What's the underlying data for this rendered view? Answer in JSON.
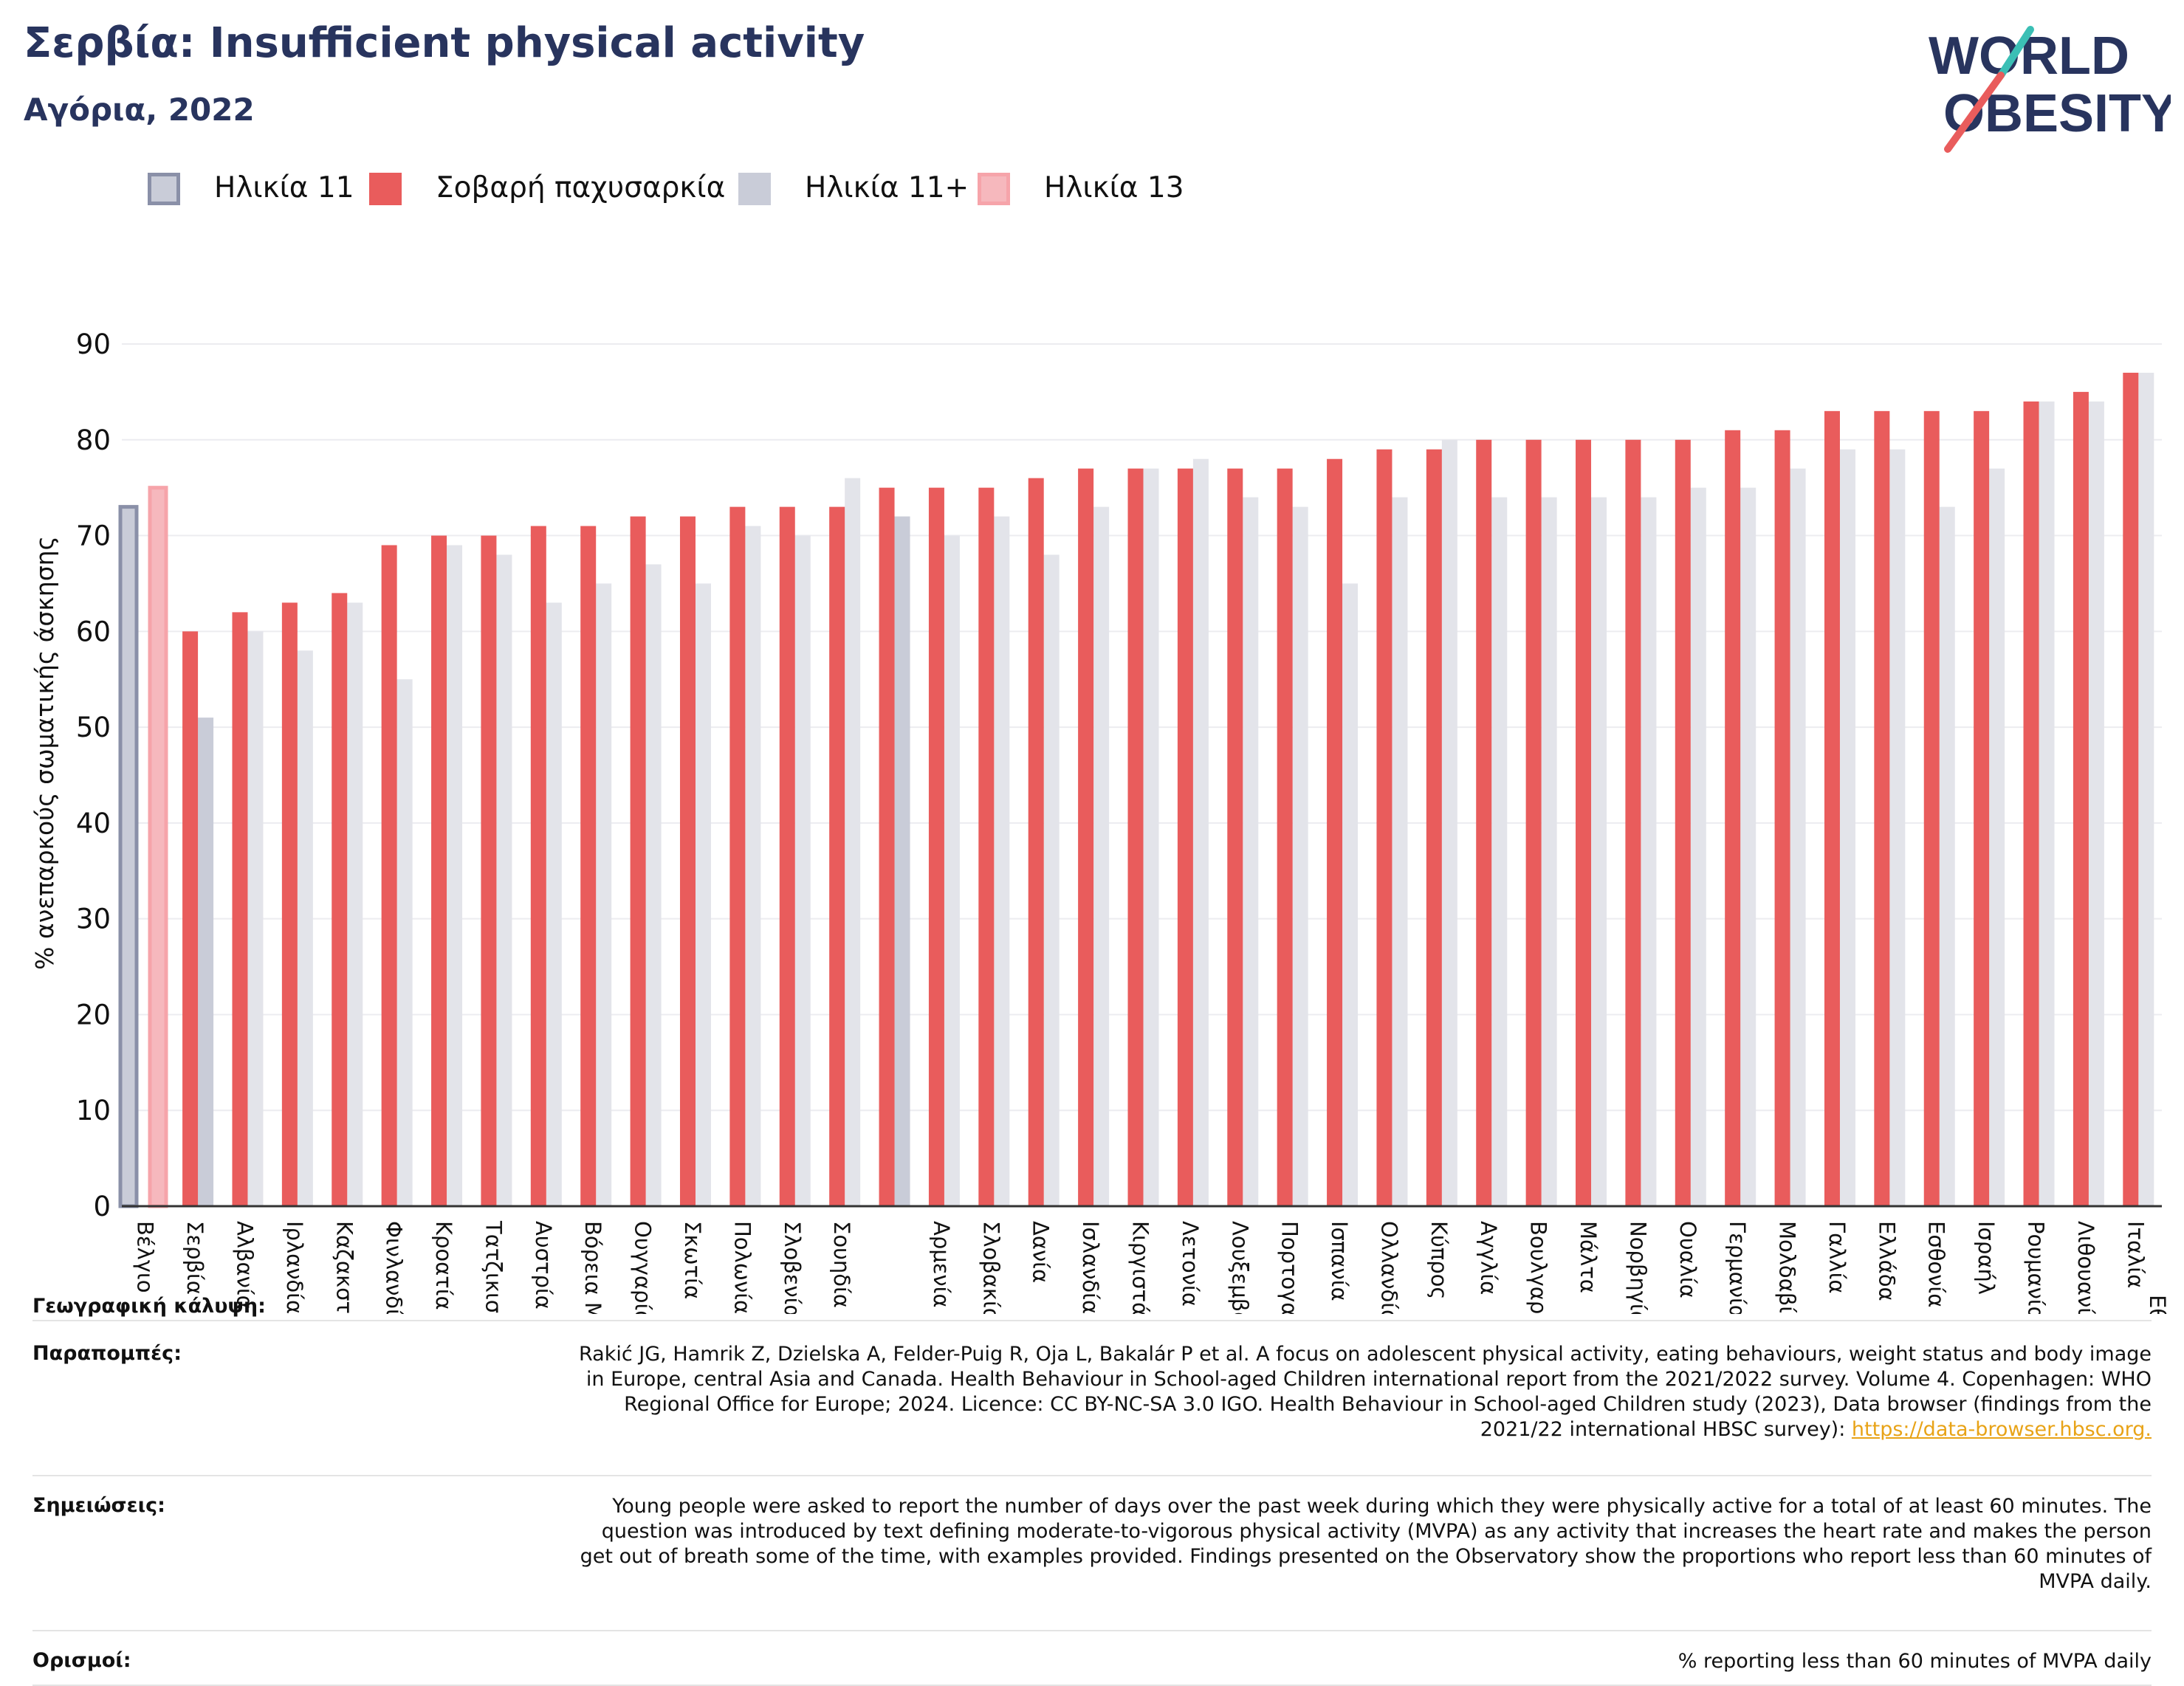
{
  "title": "Σερβία: Insufficient physical activity",
  "subtitle": "Αγόρια, 2022",
  "logo": {
    "line1": "WORLD",
    "line2": "OBESITY"
  },
  "colors": {
    "navy": "#28345e",
    "red": "#e95c5c",
    "grey": "#c9ccd8",
    "lightgrey": "#e3e4ea",
    "pink": "#f6b8bd",
    "teal": "#3bbfb5",
    "link": "#e8a317"
  },
  "legend": [
    {
      "label": "Ηλικία 11",
      "color": "#c9ccd8",
      "border": "#8a90a8"
    },
    {
      "label": "Σοβαρή παχυσαρκία",
      "color": "#e95c5c",
      "border": "#e95c5c"
    },
    {
      "label": "Ηλικία 11+",
      "color": "#c9ccd8",
      "border": "#c9ccd8"
    },
    {
      "label": "Ηλικία 13",
      "color": "#f6b8bd",
      "border": "#f6a4aa"
    }
  ],
  "chart_data": {
    "type": "bar",
    "ylabel": "% ανεπαρκούς σωματικής άσκησης",
    "ylim": [
      0,
      90
    ],
    "yticks": [
      0,
      10,
      20,
      30,
      40,
      50,
      60,
      70,
      80,
      90
    ],
    "grid": true,
    "legend_position": "top-left",
    "categories": [
      "Βέλγιο",
      "Σερβία",
      "Αλβανία",
      "Ιρλανδία",
      "Καζακστάν",
      "Φινλανδία",
      "Κροατία",
      "Τατζικιστάν",
      "Αυστρία",
      "Βόρεια Μακεδονία",
      "Ουγγαρία",
      "Σκωτία",
      "Πολωνία",
      "Σλοβενία",
      "Σουηδία",
      "",
      "Αρμενία",
      "Σλοβακία",
      "Δανία",
      "Ισλανδία",
      "Κιργιστάν",
      "Λετονία",
      "Λουξεμβούργο",
      "Πορτογαλία",
      "Ισπανία",
      "Ολλανδία",
      "Κύπρος",
      "Αγγλία",
      "Βουλγαρία",
      "Μάλτα",
      "Νορβηγία",
      "Ουαλία",
      "Γερμανία",
      "Μολδαβία",
      "Γαλλία",
      "Ελλάδα",
      "Εσθονία",
      "Ισραήλ",
      "Ρουμανία",
      "Λιθουανία",
      "Ιταλία"
    ],
    "series": [
      {
        "name": "Σοβαρή παχυσαρκία",
        "values": [
          null,
          60,
          62,
          63,
          64,
          69,
          70,
          70,
          71,
          71,
          72,
          72,
          73,
          73,
          73,
          75,
          75,
          75,
          76,
          77,
          77,
          77,
          77,
          77,
          78,
          79,
          79,
          80,
          80,
          80,
          80,
          80,
          81,
          81,
          83,
          83,
          83,
          83,
          84,
          85,
          87
        ]
      },
      {
        "name": "Ηλικία 11+",
        "values": [
          null,
          51,
          60,
          58,
          63,
          55,
          69,
          68,
          63,
          65,
          67,
          65,
          71,
          70,
          76,
          72,
          70,
          72,
          68,
          73,
          77,
          78,
          74,
          73,
          65,
          74,
          80,
          74,
          74,
          74,
          74,
          75,
          75,
          77,
          79,
          79,
          73,
          77,
          84,
          84,
          87
        ]
      },
      {
        "name": "Ηλικία 11",
        "values": [
          73,
          null,
          null,
          null,
          null,
          null,
          null,
          null,
          null,
          null,
          null,
          null,
          null,
          null,
          null,
          null,
          null,
          null,
          null,
          null,
          null,
          null,
          null,
          null,
          null,
          null,
          null,
          null,
          null,
          null,
          null,
          null,
          null,
          null,
          null,
          null,
          null,
          null,
          null,
          null,
          null
        ]
      },
      {
        "name": "Ηλικία 13",
        "values": [
          75,
          null,
          null,
          null,
          null,
          null,
          null,
          null,
          null,
          null,
          null,
          null,
          null,
          null,
          null,
          null,
          null,
          null,
          null,
          null,
          null,
          null,
          null,
          null,
          null,
          null,
          null,
          null,
          null,
          null,
          null,
          null,
          null,
          null,
          null,
          null,
          null,
          null,
          null,
          null,
          null
        ]
      }
    ],
    "extra_label": "Εθνική"
  },
  "footer": {
    "coverage_label": "Γεωγραφική κάλυψη:",
    "refs_label": "Παραπομπές:",
    "refs_text": "Rakić JG, Hamrik Z, Dzielska A, Felder-Puig R, Oja L, Bakalár P et al. A focus on adolescent physical activity, eating behaviours, weight status and body image in Europe, central Asia and Canada. Health Behaviour in School-aged Children international report from the 2021/2022 survey. Volume 4. Copenhagen: WHO Regional Office for Europe; 2024. Licence: CC BY-NC-SA 3.0 IGO. Health Behaviour in School-aged Children study (2023), Data browser (findings from the 2021/22 international HBSC survey): ",
    "refs_link": "https://data-browser.hbsc.org.",
    "notes_label": "Σημειώσεις:",
    "notes_text": "Young people were asked to report the number of days over the past week during which they were physically active for a total of at least 60 minutes. The question was introduced by text defining moderate-to-vigorous physical activity (MVPA) as any activity that increases the heart rate and makes the person get out of breath some of the time, with examples provided. Findings presented on the Observatory show the proportions who report less than 60 minutes of MVPA daily.",
    "defs_label": "Ορισμοί:",
    "defs_text": "% reporting less than 60 minutes of MVPA daily"
  }
}
